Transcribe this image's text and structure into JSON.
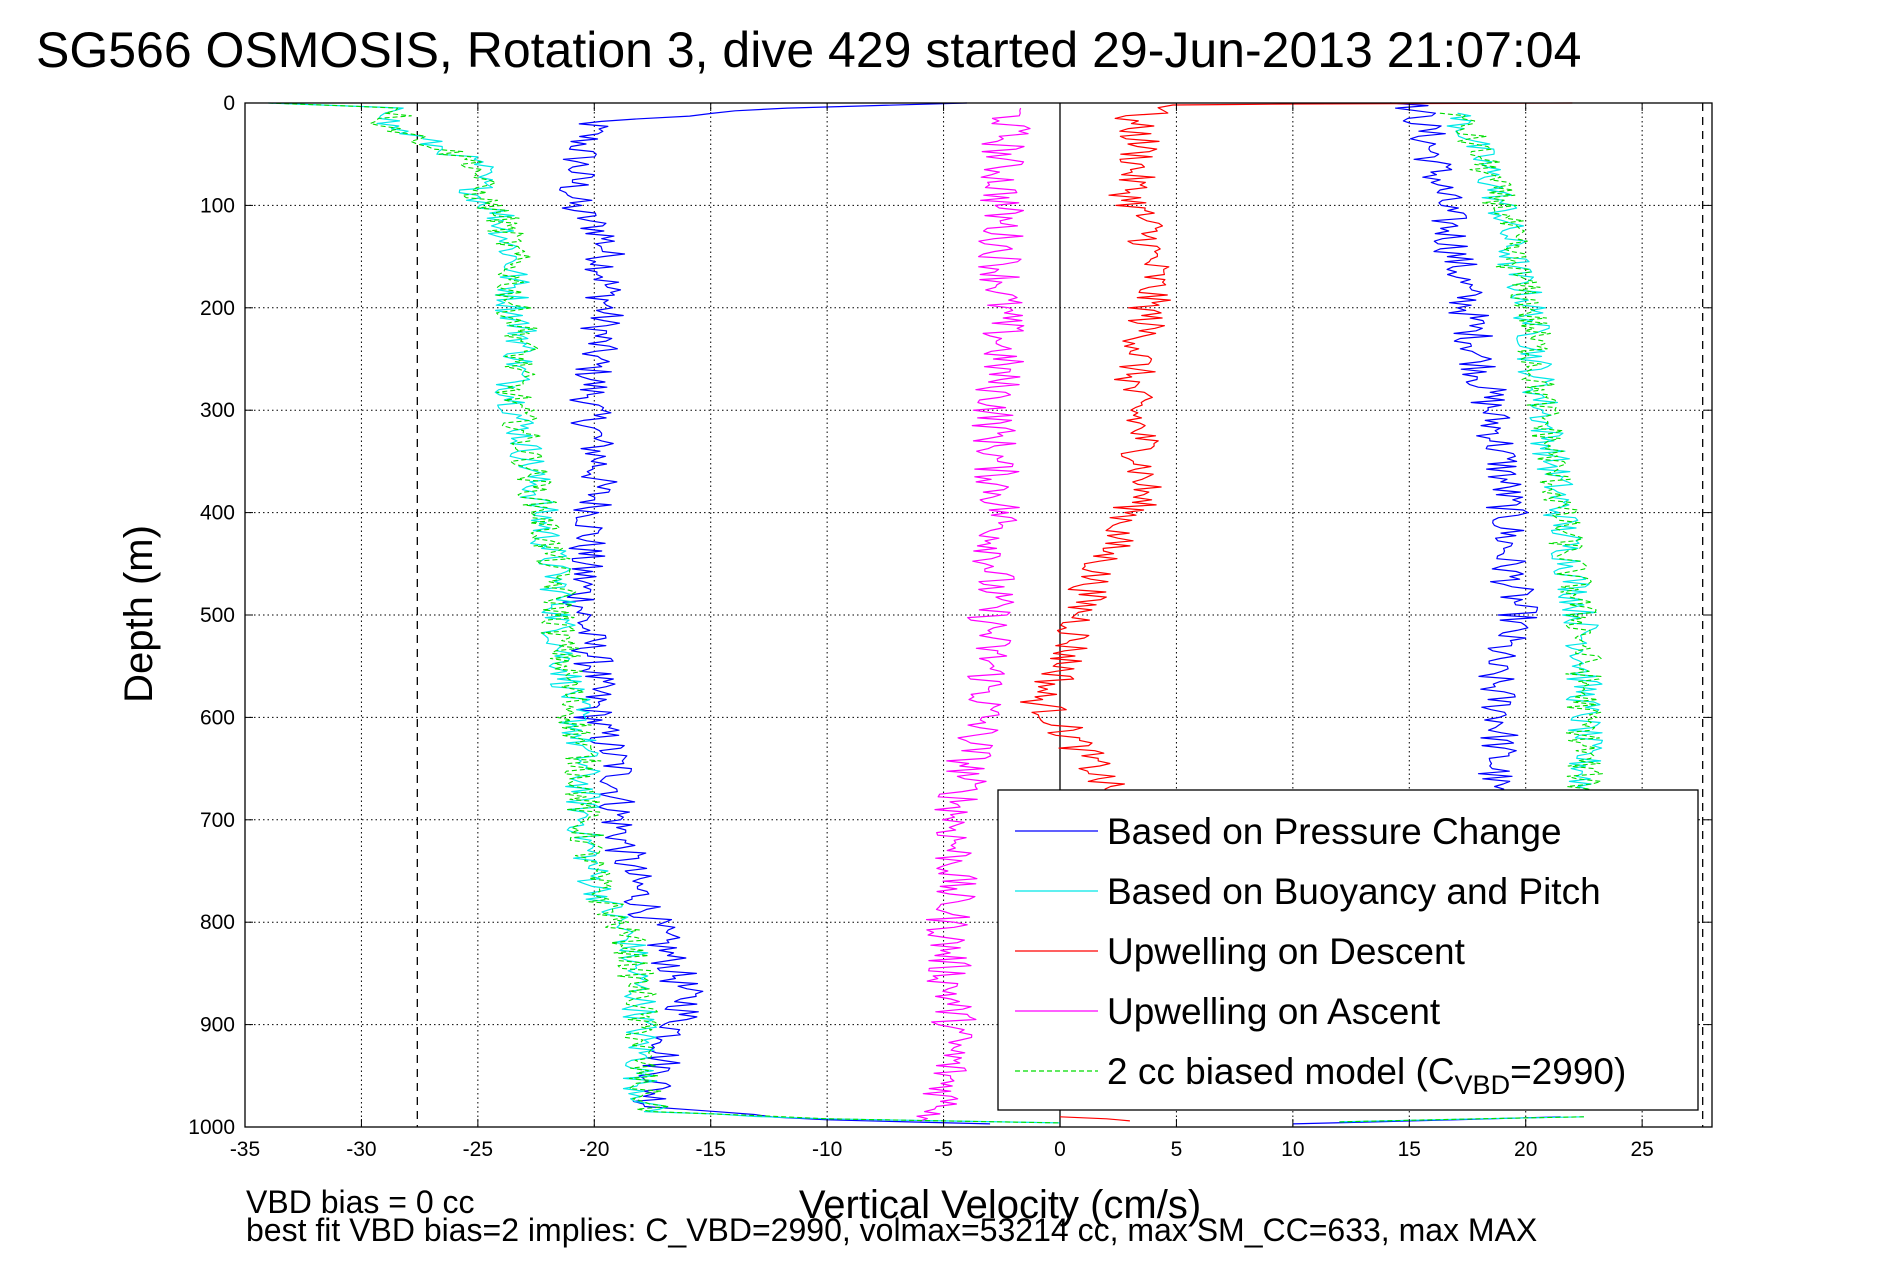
{
  "chart_data": {
    "type": "line",
    "title": "SG566 OSMOSIS, Rotation 3, dive 429 started 29-Jun-2013 21:07:04",
    "xlabel": "Vertical Velocity (cm/s)",
    "ylabel": "Depth (m)",
    "xlim": [
      -35,
      28
    ],
    "ylim": [
      0,
      1000
    ],
    "y_reversed": true,
    "grid": true,
    "x_ticks": [
      "-35",
      "-30",
      "-25",
      "-20",
      "-15",
      "-10",
      "-5",
      "0",
      "5",
      "10",
      "15",
      "20",
      "25"
    ],
    "y_ticks": [
      "0",
      "100",
      "200",
      "300",
      "400",
      "500",
      "600",
      "700",
      "800",
      "900",
      "1000"
    ],
    "reference_lines_x": [
      -27.6,
      0,
      27.6
    ],
    "legend_position": "bottom-right",
    "footer_lines": [
      "VBD bias = 0 cc",
      "best fit VBD bias=2 implies: C_VBD=2990, volmax=53214 cc, max SM_CC=633, max MAX"
    ],
    "series": [
      {
        "name": "Based on Pressure Change",
        "color": "#0000ff",
        "dash": false,
        "noise": 0.9,
        "segments": [
          [
            [
              -4,
              0
            ],
            [
              -12,
              5
            ],
            [
              -20,
              18
            ],
            [
              -20.5,
              40
            ],
            [
              -21,
              100
            ],
            [
              -19.5,
              130
            ],
            [
              -19.5,
              200
            ],
            [
              -20,
              250
            ],
            [
              -20.2,
              300
            ],
            [
              -19.8,
              350
            ],
            [
              -20,
              400
            ],
            [
              -20.5,
              450
            ],
            [
              -20.5,
              500
            ],
            [
              -20,
              550
            ],
            [
              -20,
              600
            ],
            [
              -19,
              650
            ],
            [
              -19,
              700
            ],
            [
              -18.5,
              750
            ],
            [
              -17.5,
              800
            ],
            [
              -16.5,
              850
            ],
            [
              -16,
              880
            ],
            [
              -17,
              930
            ],
            [
              -17.5,
              980
            ],
            [
              -10,
              993
            ],
            [
              -3,
              997
            ]
          ],
          [
            [
              15,
              0
            ],
            [
              15.5,
              15
            ],
            [
              16,
              50
            ],
            [
              16.5,
              100
            ],
            [
              17,
              150
            ],
            [
              17.5,
              200
            ],
            [
              18,
              250
            ],
            [
              18.5,
              300
            ],
            [
              19,
              350
            ],
            [
              19.2,
              400
            ],
            [
              19.2,
              450
            ],
            [
              19.7,
              500
            ],
            [
              18.5,
              550
            ],
            [
              19,
              600
            ],
            [
              18.7,
              650
            ],
            [
              18.5,
              680
            ]
          ],
          [
            [
              10,
              997
            ],
            [
              17,
              993
            ],
            [
              21.5,
              990
            ]
          ]
        ]
      },
      {
        "name": "Based on Buoyancy and Pitch",
        "color": "#00e8e8",
        "dash": false,
        "noise": 0.8,
        "segments": [
          [
            [
              -34,
              0
            ],
            [
              -28,
              5
            ],
            [
              -29,
              20
            ],
            [
              -27,
              40
            ],
            [
              -25,
              60
            ],
            [
              -25,
              90
            ],
            [
              -24,
              110
            ],
            [
              -23.5,
              150
            ],
            [
              -23.5,
              200
            ],
            [
              -23,
              230
            ],
            [
              -23.5,
              280
            ],
            [
              -23,
              330
            ],
            [
              -22.5,
              380
            ],
            [
              -22,
              430
            ],
            [
              -21.5,
              480
            ],
            [
              -21.5,
              520
            ],
            [
              -21,
              580
            ],
            [
              -20.5,
              640
            ],
            [
              -20.5,
              700
            ],
            [
              -20,
              760
            ],
            [
              -18.5,
              820
            ],
            [
              -18,
              880
            ],
            [
              -18,
              960
            ],
            [
              -17.5,
              985
            ],
            [
              -10,
              992
            ],
            [
              0,
              996
            ]
          ],
          [
            [
              17,
              10
            ],
            [
              18,
              50
            ],
            [
              19,
              100
            ],
            [
              19.5,
              160
            ],
            [
              20.2,
              200
            ],
            [
              20.5,
              270
            ],
            [
              21,
              330
            ],
            [
              21.5,
              400
            ],
            [
              22,
              460
            ],
            [
              22.5,
              520
            ],
            [
              22.5,
              600
            ],
            [
              22.5,
              660
            ],
            [
              22.5,
              690
            ]
          ],
          [
            [
              12,
              995
            ],
            [
              18,
              992
            ],
            [
              22.5,
              990
            ]
          ]
        ]
      },
      {
        "name": "Upwelling on Descent",
        "color": "#ff0000",
        "dash": false,
        "noise": 0.9,
        "segments": [
          [
            [
              22,
              0
            ],
            [
              10,
              1
            ],
            [
              5,
              2
            ],
            [
              3,
              15
            ],
            [
              3.5,
              40
            ],
            [
              3,
              90
            ],
            [
              3.7,
              120
            ],
            [
              4,
              170
            ],
            [
              3.6,
              230
            ],
            [
              3,
              280
            ],
            [
              3.5,
              330
            ],
            [
              3.6,
              380
            ],
            [
              2.5,
              420
            ],
            [
              1.5,
              460
            ],
            [
              1,
              490
            ],
            [
              0.5,
              530
            ],
            [
              0,
              560
            ],
            [
              -1,
              580
            ],
            [
              0.5,
              620
            ],
            [
              1.5,
              650
            ],
            [
              2,
              670
            ],
            [
              3,
              680
            ]
          ],
          [
            [
              0,
              990
            ],
            [
              2,
              992
            ],
            [
              3,
              994
            ]
          ]
        ]
      },
      {
        "name": "Upwelling on Ascent",
        "color": "#ff00ff",
        "dash": false,
        "noise": 1.0,
        "segments": [
          [
            [
              -2,
              5
            ],
            [
              -2.5,
              50
            ],
            [
              -2.5,
              100
            ],
            [
              -2.5,
              150
            ],
            [
              -2.5,
              200
            ],
            [
              -2.5,
              250
            ],
            [
              -2.8,
              300
            ],
            [
              -2.8,
              350
            ],
            [
              -2.5,
              400
            ],
            [
              -2.8,
              450
            ],
            [
              -3,
              500
            ],
            [
              -3,
              550
            ],
            [
              -3.3,
              600
            ],
            [
              -4,
              650
            ],
            [
              -4.5,
              700
            ],
            [
              -4.5,
              750
            ],
            [
              -4.8,
              800
            ],
            [
              -4.8,
              850
            ],
            [
              -4.5,
              900
            ],
            [
              -4.8,
              950
            ],
            [
              -5,
              985
            ],
            [
              -6,
              994
            ]
          ]
        ]
      },
      {
        "name": "2 cc biased model (C_VBD=2990)",
        "color": "#00dd00",
        "dash": true,
        "noise": 0.8,
        "segments": [
          [
            [
              -34,
              0
            ],
            [
              -28,
              5
            ],
            [
              -29,
              20
            ],
            [
              -27,
              40
            ],
            [
              -25,
              60
            ],
            [
              -25,
              90
            ],
            [
              -24,
              110
            ],
            [
              -23.5,
              150
            ],
            [
              -23.5,
              200
            ],
            [
              -23,
              230
            ],
            [
              -23.5,
              280
            ],
            [
              -23,
              330
            ],
            [
              -22.5,
              380
            ],
            [
              -22,
              430
            ],
            [
              -21.5,
              480
            ],
            [
              -21.5,
              520
            ],
            [
              -21,
              580
            ],
            [
              -20.5,
              640
            ],
            [
              -20.5,
              700
            ],
            [
              -20,
              760
            ],
            [
              -18.5,
              820
            ],
            [
              -18,
              880
            ],
            [
              -18,
              960
            ],
            [
              -17.5,
              985
            ],
            [
              -10,
              992
            ],
            [
              0,
              996
            ]
          ],
          [
            [
              17,
              10
            ],
            [
              18,
              50
            ],
            [
              19,
              100
            ],
            [
              19.5,
              160
            ],
            [
              20.2,
              200
            ],
            [
              20.5,
              270
            ],
            [
              21,
              330
            ],
            [
              21.5,
              400
            ],
            [
              22,
              460
            ],
            [
              22.5,
              520
            ],
            [
              22.5,
              600
            ],
            [
              22.5,
              660
            ],
            [
              22.5,
              690
            ]
          ],
          [
            [
              12,
              995
            ],
            [
              18,
              992
            ],
            [
              22.5,
              990
            ]
          ]
        ]
      }
    ],
    "legend_entries": [
      {
        "text": "Based on Pressure Change"
      },
      {
        "text": "Based on Buoyancy and Pitch"
      },
      {
        "text": "Upwelling on Descent"
      },
      {
        "text": "Upwelling on Ascent"
      },
      {
        "text_main": "2 cc biased model (C",
        "text_sub": "VBD",
        "text_tail": "=2990)"
      }
    ]
  }
}
